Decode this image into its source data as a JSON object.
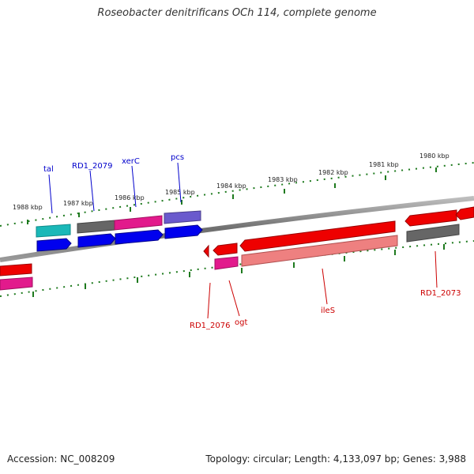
{
  "title": "Roseobacter denitrificans OCh 114, complete genome",
  "footer": {
    "accession": "Accession: NC_008209",
    "stats": "Topology: circular; Length: 4,133,097 bp; Genes: 3,988"
  },
  "scale_labels": [
    "1988 kbp",
    "1987 kbp",
    "1986 kbp",
    "1985 kbp",
    "1984 kbp",
    "1983 kbp",
    "1982 kbp",
    "1981 kbp",
    "1980 kbp"
  ],
  "gene_labels": {
    "tal": "tal",
    "rd1_2079": "RD1_2079",
    "xerc": "xerC",
    "pcs": "pcs",
    "rd1_2076": "RD1_2076",
    "ogt": "ogt",
    "iles": "ileS",
    "rd1_2073": "RD1_2073"
  },
  "colors": {
    "backbone": "#7a7a7a",
    "tick": "#1e7a1e",
    "label_forward": "#0000cc",
    "label_reverse": "#cc0000",
    "cds_blue": "#0000ee",
    "cds_red": "#ee0000",
    "teal": "#1ab8b8",
    "gray": "#666666",
    "magenta": "#e21a8c",
    "purple": "#6a5acd",
    "salmon": "#ee8080"
  }
}
